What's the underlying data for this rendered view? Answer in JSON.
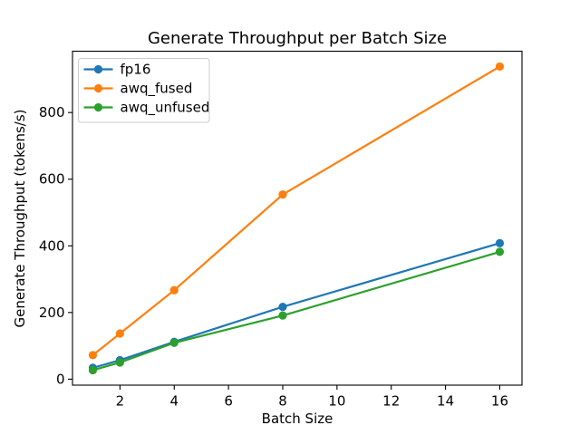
{
  "chart_data": {
    "type": "line",
    "title": "Generate Throughput per Batch Size",
    "xlabel": "Batch Size",
    "ylabel": "Generate Throughput (tokens/s)",
    "x": [
      1,
      2,
      4,
      8,
      16
    ],
    "series": [
      {
        "name": "fp16",
        "color": "#1f77b4",
        "values": [
          34,
          57,
          112,
          217,
          408
        ]
      },
      {
        "name": "awq_fused",
        "color": "#ff7f0e",
        "values": [
          72,
          137,
          267,
          554,
          938
        ]
      },
      {
        "name": "awq_unfused",
        "color": "#2ca02c",
        "values": [
          27,
          50,
          109,
          191,
          382
        ]
      }
    ],
    "xlim": [
      0.25,
      16.82
    ],
    "ylim": [
      -18,
      984
    ],
    "xticks": [
      2,
      4,
      6,
      8,
      10,
      12,
      14,
      16
    ],
    "yticks": [
      0,
      200,
      400,
      600,
      800
    ],
    "grid": false,
    "legend_position": "upper left",
    "marker": "o",
    "background": "#ffffff",
    "text_color": "#000000",
    "spine_color": "#000000"
  }
}
